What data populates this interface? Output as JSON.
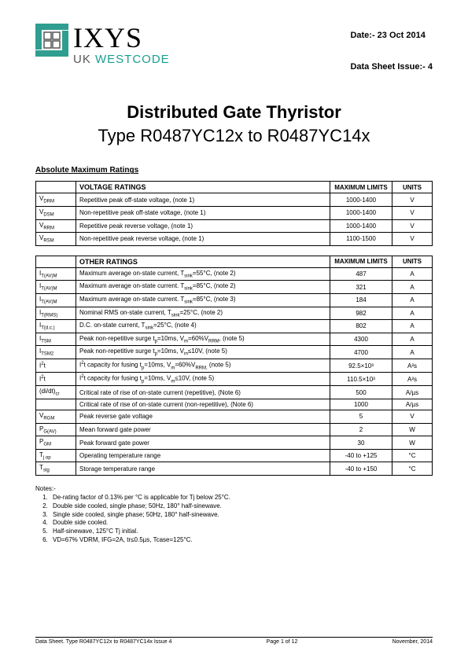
{
  "header": {
    "company_main": "IXYS",
    "company_sub_1": "UK",
    "company_sub_2": "WESTCODE",
    "date_label": "Date:- 23 Oct 2014",
    "issue_label": "Data Sheet Issue:- 4",
    "logo": {
      "background": "#ffffff",
      "square_color": "#2f9e90",
      "outline_color": "#555555"
    }
  },
  "title": {
    "line1": "Distributed Gate Thyristor",
    "line2": "Type R0487YC12x to R0487YC14x"
  },
  "section_label": "Absolute Maximum Ratings",
  "voltage_table": {
    "columns": [
      "",
      "VOLTAGE RATINGS",
      "MAXIMUM LIMITS",
      "UNITS"
    ],
    "rows": [
      {
        "sym": "V",
        "sub": "DRM",
        "desc": "Repetitive peak off-state voltage, (note 1)",
        "max": "1000-1400",
        "unit": "V"
      },
      {
        "sym": "V",
        "sub": "DSM",
        "desc": "Non-repetitive peak off-state voltage, (note 1)",
        "max": "1000-1400",
        "unit": "V"
      },
      {
        "sym": "V",
        "sub": "RRM",
        "desc": "Repetitive peak reverse voltage, (note 1)",
        "max": "1000-1400",
        "unit": "V"
      },
      {
        "sym": "V",
        "sub": "RSM",
        "desc": "Non-repetitive peak reverse voltage, (note 1)",
        "max": "1100-1500",
        "unit": "V"
      }
    ]
  },
  "other_table": {
    "columns": [
      "",
      "OTHER RATINGS",
      "MAXIMUM LIMITS",
      "UNITS"
    ],
    "rows": [
      {
        "sym_html": "I<span class=\"sub\">T(AV)M</span>",
        "desc_html": "Maximum average on-state current, T<span class=\"sub\">sink</span>=55°C, (note 2)",
        "max": "487",
        "unit": "A"
      },
      {
        "sym_html": "I<span class=\"sub\">T(AV)M</span>",
        "desc_html": "Maximum average on-state current. T<span class=\"sub\">sink</span>=85°C, (note 2)",
        "max": "321",
        "unit": "A"
      },
      {
        "sym_html": "I<span class=\"sub\">T(AV)M</span>",
        "desc_html": "Maximum average on-state current. T<span class=\"sub\">sink</span>=85°C, (note 3)",
        "max": "184",
        "unit": "A"
      },
      {
        "sym_html": "I<span class=\"sub\">T(RMS)</span>",
        "desc_html": "Nominal RMS on-state current, T<span class=\"sub\">sink</span>=25°C, (note 2)",
        "max": "982",
        "unit": "A"
      },
      {
        "sym_html": "I<span class=\"sub\">T(d.c.)</span>",
        "desc_html": "D.C. on-state current, T<span class=\"sub\">sink</span>=25°C, (note 4)",
        "max": "802",
        "unit": "A"
      },
      {
        "sym_html": "I<span class=\"sub\">TSM</span>",
        "desc_html": "Peak non-repetitive surge t<span class=\"sub\">p</span>=10ms, V<span class=\"sub\">m</span>=60%V<span class=\"sub\">RRM</span>, (note 5)",
        "max": "4300",
        "unit": "A"
      },
      {
        "sym_html": "I<span class=\"sub\">TSM2</span>",
        "desc_html": "Peak non-repetitive surge t<span class=\"sub\">p</span>=10ms, V<span class=\"sub\">m</span>≤10V, (note 5)",
        "max": "4700",
        "unit": "A"
      },
      {
        "sym_html": "I<span class=\"sup\">2</span>t",
        "desc_html": "I<span class=\"sup\">2</span>t capacity for fusing t<span class=\"sub\">p</span>=10ms, V<span class=\"sub\">m</span>=60%V<span class=\"sub\">RRM,</span> (note 5)",
        "max": "92.5×10³",
        "unit": "A²s"
      },
      {
        "sym_html": "I<span class=\"sup\">2</span>t",
        "desc_html": "I<span class=\"sup\">2</span>t capacity for fusing t<span class=\"sub\">p</span>=10ms, V<span class=\"sub\">m</span>≤10V, (note 5)",
        "max": "110.5×10³",
        "unit": "A²s"
      },
      {
        "sym_html": "(di/dt)<span class=\"sub\">cr</span>",
        "desc_html": "Critical rate of rise of on-state current (repetitive), (Note 6)",
        "max": "500",
        "unit": "A/µs"
      },
      {
        "sym_html": "",
        "desc_html": "Critical rate of rise of on-state current (non-repetitive), (Note 6)",
        "max": "1000",
        "unit": "A/µs"
      },
      {
        "sym_html": "V<span class=\"sub\">RGM</span>",
        "desc_html": "Peak reverse gate voltage",
        "max": "5",
        "unit": "V"
      },
      {
        "sym_html": "P<span class=\"sub\">G(AV)</span>",
        "desc_html": "Mean forward gate power",
        "max": "2",
        "unit": "W"
      },
      {
        "sym_html": "P<span class=\"sub\">GM</span>",
        "desc_html": "Peak forward gate power",
        "max": "30",
        "unit": "W"
      },
      {
        "sym_html": "T<span class=\"sub\">j op</span>",
        "desc_html": "Operating temperature range",
        "max": "-40 to +125",
        "unit": "°C"
      },
      {
        "sym_html": "T<span class=\"sub\">stg</span>",
        "desc_html": "Storage temperature range",
        "max": "-40 to +150",
        "unit": "°C"
      }
    ]
  },
  "notes": {
    "title": "Notes:-",
    "items": [
      "De-rating factor of 0.13% per °C is applicable for Tj below 25°C.",
      "Double side cooled, single phase; 50Hz, 180° half-sinewave.",
      "Single side cooled, single phase; 50Hz, 180° half-sinewave.",
      "Double side cooled.",
      "Half-sinewave, 125°C Tj initial.",
      "VD=67% VDRM, IFG=2A, tr≤0.5µs, Tcase=125°C."
    ]
  },
  "footer": {
    "left": "Data Sheet. Type R0487YC12x to R0487YC14x Issue 4",
    "center": "Page 1 of 12",
    "right": "November, 2014"
  }
}
